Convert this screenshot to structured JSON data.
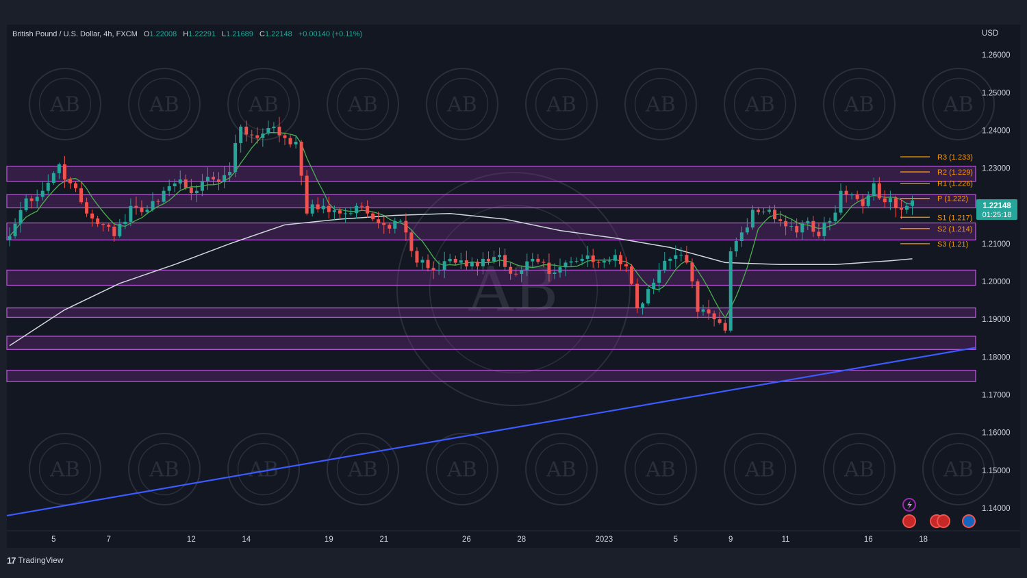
{
  "header": {
    "symbol": "British Pound / U.S. Dollar, 4h, FXCM",
    "o_label": "O",
    "o_value": "1.22008",
    "h_label": "H",
    "h_value": "1.22291",
    "l_label": "L",
    "l_value": "1.21689",
    "c_label": "C",
    "c_value": "1.22148",
    "change": "+0.00140 (+0.11%)"
  },
  "currency_label": "USD",
  "price_badge": {
    "price": "1.22148",
    "countdown": "01:25:18"
  },
  "footer": {
    "brand": "TradingView",
    "logo_glyph": "17"
  },
  "watermark": {
    "initials": "AB"
  },
  "colors": {
    "background": "#131722",
    "up_candle": "#26a69a",
    "down_candle": "#ef5350",
    "zone_fill": "#7b2f8e",
    "zone_border": "#b455d4",
    "pivot": "#ff9800",
    "trendline": "#3d5afe",
    "ma_fast": "#4caf50",
    "ma_slow": "#cfd8dc",
    "badge": "#26a69a"
  },
  "chart_data": {
    "type": "candlestick",
    "yaxis": {
      "min": 1.134,
      "max": 1.268,
      "ticks": [
        "1.26000",
        "1.25000",
        "1.24000",
        "1.23000",
        "1.22000",
        "1.21000",
        "1.20000",
        "1.19000",
        "1.18000",
        "1.17000",
        "1.16000",
        "1.15000",
        "1.14000"
      ]
    },
    "xaxis": {
      "labels": [
        {
          "text": "5",
          "index": 8
        },
        {
          "text": "7",
          "index": 18
        },
        {
          "text": "12",
          "index": 33
        },
        {
          "text": "14",
          "index": 43
        },
        {
          "text": "19",
          "index": 58
        },
        {
          "text": "21",
          "index": 68
        },
        {
          "text": "26",
          "index": 83
        },
        {
          "text": "28",
          "index": 93
        },
        {
          "text": "2023",
          "index": 108
        },
        {
          "text": "5",
          "index": 121
        },
        {
          "text": "9",
          "index": 131
        },
        {
          "text": "11",
          "index": 141
        },
        {
          "text": "16",
          "index": 156
        },
        {
          "text": "18",
          "index": 166
        }
      ],
      "total_slots": 176
    },
    "zones": [
      {
        "from": 1.2265,
        "to": 1.2305
      },
      {
        "from": 1.2195,
        "to": 1.223
      },
      {
        "from": 1.211,
        "to": 1.2155
      },
      {
        "from": 1.199,
        "to": 1.203
      },
      {
        "from": 1.1905,
        "to": 1.193
      },
      {
        "from": 1.182,
        "to": 1.1855
      },
      {
        "from": 1.1735,
        "to": 1.1765
      }
    ],
    "pivots": [
      {
        "label": "R3 (1.233)",
        "value": 1.233
      },
      {
        "label": "R2 (1.229)",
        "value": 1.229
      },
      {
        "label": "R1 (1.226)",
        "value": 1.226
      },
      {
        "label": "P (1.222)",
        "value": 1.222
      },
      {
        "label": "S1 (1.217)",
        "value": 1.217
      },
      {
        "label": "S2 (1.214)",
        "value": 1.214
      },
      {
        "label": "S3 (1.21)",
        "value": 1.21
      }
    ],
    "trendline": {
      "from": {
        "index": 0,
        "value": 1.138
      },
      "to": {
        "index": 176,
        "value": 1.1825
      }
    },
    "ma_slow_anchors": [
      [
        0,
        1.183
      ],
      [
        10,
        1.1925
      ],
      [
        20,
        1.1995
      ],
      [
        30,
        1.2045
      ],
      [
        40,
        1.21
      ],
      [
        50,
        1.215
      ],
      [
        60,
        1.2165
      ],
      [
        70,
        1.2175
      ],
      [
        80,
        1.218
      ],
      [
        90,
        1.2165
      ],
      [
        100,
        1.2135
      ],
      [
        110,
        1.2115
      ],
      [
        120,
        1.209
      ],
      [
        130,
        1.205
      ],
      [
        140,
        1.2045
      ],
      [
        150,
        1.2045
      ],
      [
        160,
        1.2055
      ],
      [
        164,
        1.206
      ]
    ],
    "close_anchors": [
      [
        0,
        1.212
      ],
      [
        3,
        1.222
      ],
      [
        6,
        1.224
      ],
      [
        9,
        1.231
      ],
      [
        11,
        1.226
      ],
      [
        14,
        1.218
      ],
      [
        17,
        1.215
      ],
      [
        19,
        1.212
      ],
      [
        22,
        1.22
      ],
      [
        25,
        1.219
      ],
      [
        28,
        1.224
      ],
      [
        31,
        1.227
      ],
      [
        34,
        1.224
      ],
      [
        37,
        1.227
      ],
      [
        40,
        1.229
      ],
      [
        42,
        1.241
      ],
      [
        45,
        1.238
      ],
      [
        48,
        1.241
      ],
      [
        50,
        1.238
      ],
      [
        52,
        1.237
      ],
      [
        53,
        1.228
      ],
      [
        54,
        1.218
      ],
      [
        57,
        1.22
      ],
      [
        60,
        1.218
      ],
      [
        63,
        1.22
      ],
      [
        65,
        1.218
      ],
      [
        68,
        1.215
      ],
      [
        70,
        1.216
      ],
      [
        72,
        1.213
      ],
      [
        74,
        1.205
      ],
      [
        77,
        1.203
      ],
      [
        80,
        1.206
      ],
      [
        83,
        1.204
      ],
      [
        86,
        1.206
      ],
      [
        89,
        1.207
      ],
      [
        92,
        1.202
      ],
      [
        95,
        1.206
      ],
      [
        98,
        1.202
      ],
      [
        101,
        1.205
      ],
      [
        104,
        1.206
      ],
      [
        107,
        1.205
      ],
      [
        110,
        1.207
      ],
      [
        112,
        1.204
      ],
      [
        114,
        1.193
      ],
      [
        116,
        1.198
      ],
      [
        118,
        1.203
      ],
      [
        120,
        1.206
      ],
      [
        123,
        1.205
      ],
      [
        125,
        1.192
      ],
      [
        128,
        1.19
      ],
      [
        130,
        1.187
      ],
      [
        131,
        1.208
      ],
      [
        133,
        1.213
      ],
      [
        135,
        1.219
      ],
      [
        138,
        1.219
      ],
      [
        140,
        1.216
      ],
      [
        143,
        1.213
      ],
      [
        145,
        1.216
      ],
      [
        147,
        1.212
      ],
      [
        149,
        1.216
      ],
      [
        151,
        1.224
      ],
      [
        153,
        1.223
      ],
      [
        155,
        1.22
      ],
      [
        157,
        1.226
      ],
      [
        159,
        1.221
      ],
      [
        162,
        1.219
      ],
      [
        163,
        1.22
      ],
      [
        164,
        1.22148
      ]
    ]
  }
}
